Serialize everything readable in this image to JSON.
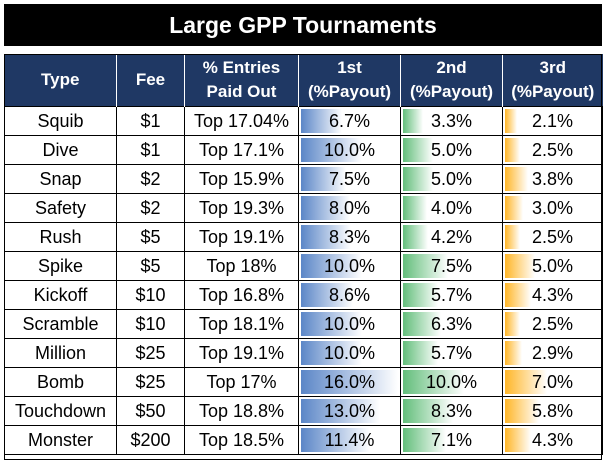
{
  "title": "Large GPP Tournaments",
  "chart_data": {
    "type": "table",
    "columns": [
      {
        "line1": "Type",
        "line2": ""
      },
      {
        "line1": "Fee",
        "line2": ""
      },
      {
        "line1": "% Entries",
        "line2": "Paid Out"
      },
      {
        "line1": "1st",
        "line2": "(%Payout)"
      },
      {
        "line1": "2nd",
        "line2": "(%Payout)"
      },
      {
        "line1": "3rd",
        "line2": "(%Payout)"
      }
    ],
    "bar_scale_max": 16.0,
    "bar_colors": {
      "first": "#5b86c7",
      "second": "#63be7b",
      "third": "#ffb628"
    },
    "rows": [
      {
        "type": "Squib",
        "fee": "$1",
        "paid_out": "Top 17.04%",
        "first": 6.7,
        "second": 3.3,
        "third": 2.1
      },
      {
        "type": "Dive",
        "fee": "$1",
        "paid_out": "Top 17.1%",
        "first": 10.0,
        "second": 5.0,
        "third": 2.5
      },
      {
        "type": "Snap",
        "fee": "$2",
        "paid_out": "Top 15.9%",
        "first": 7.5,
        "second": 5.0,
        "third": 3.8
      },
      {
        "type": "Safety",
        "fee": "$2",
        "paid_out": "Top 19.3%",
        "first": 8.0,
        "second": 4.0,
        "third": 3.0
      },
      {
        "type": "Rush",
        "fee": "$5",
        "paid_out": "Top 19.1%",
        "first": 8.3,
        "second": 4.2,
        "third": 2.5
      },
      {
        "type": "Spike",
        "fee": "$5",
        "paid_out": "Top 18%",
        "first": 10.0,
        "second": 7.5,
        "third": 5.0
      },
      {
        "type": "Kickoff",
        "fee": "$10",
        "paid_out": "Top 16.8%",
        "first": 8.6,
        "second": 5.7,
        "third": 4.3
      },
      {
        "type": "Scramble",
        "fee": "$10",
        "paid_out": "Top 18.1%",
        "first": 10.0,
        "second": 6.3,
        "third": 2.5
      },
      {
        "type": "Million",
        "fee": "$25",
        "paid_out": "Top 19.1%",
        "first": 10.0,
        "second": 5.7,
        "third": 2.9
      },
      {
        "type": "Bomb",
        "fee": "$25",
        "paid_out": "Top 17%",
        "first": 16.0,
        "second": 10.0,
        "third": 7.0
      },
      {
        "type": "Touchdown",
        "fee": "$50",
        "paid_out": "Top 18.8%",
        "first": 13.0,
        "second": 8.3,
        "third": 5.8
      },
      {
        "type": "Monster",
        "fee": "$200",
        "paid_out": "Top 18.5%",
        "first": 11.4,
        "second": 7.1,
        "third": 4.3
      }
    ]
  }
}
